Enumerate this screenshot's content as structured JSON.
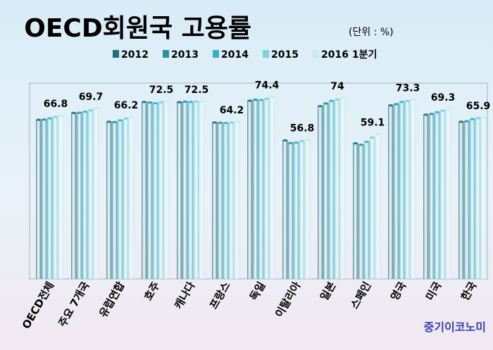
{
  "chart_data": {
    "type": "bar",
    "title": "OECD회원국 고용률",
    "subtitle": "(단위 : %)",
    "categories": [
      "OECD전체",
      "주요 7개국",
      "유럽연합",
      "호주",
      "캐나다",
      "프랑스",
      "독일",
      "이탈리아",
      "일본",
      "스페인",
      "영국",
      "미국",
      "한국"
    ],
    "series": [
      {
        "name": "2012",
        "values": [
          65.0,
          67.8,
          64.2,
          72.3,
          72.2,
          63.9,
          72.8,
          56.6,
          70.6,
          55.4,
          70.9,
          67.1,
          64.2
        ]
      },
      {
        "name": "2013",
        "values": [
          65.1,
          67.9,
          64.1,
          72.1,
          72.4,
          63.8,
          73.2,
          55.5,
          71.7,
          54.8,
          71.4,
          67.4,
          64.4
        ]
      },
      {
        "name": "2014",
        "values": [
          65.6,
          68.3,
          64.8,
          71.8,
          72.3,
          63.7,
          73.1,
          55.7,
          72.7,
          56.0,
          72.3,
          68.1,
          65.3
        ]
      },
      {
        "name": "2015",
        "values": [
          66.2,
          68.9,
          65.5,
          72.2,
          72.4,
          63.9,
          73.6,
          56.3,
          73.3,
          57.8,
          72.7,
          68.7,
          65.7
        ]
      },
      {
        "name": "2016 1분기",
        "values": [
          66.8,
          69.7,
          66.2,
          72.5,
          72.5,
          64.2,
          74.4,
          56.8,
          74.0,
          59.1,
          73.3,
          69.3,
          65.9
        ]
      }
    ],
    "data_labels": [
      "66.8",
      "69.7",
      "66.2",
      "72.5",
      "72.5",
      "64.2",
      "74.4",
      "56.8",
      "74",
      "59.1",
      "73.3",
      "69.3",
      "65.9"
    ],
    "legend_position": "top",
    "ylim": [
      0,
      80
    ],
    "grid": false,
    "colors": [
      "#1f6f80",
      "#2c90a2",
      "#36b2c6",
      "#7fd2de",
      "#c8ebf0"
    ]
  },
  "watermark": "중기이코노미"
}
